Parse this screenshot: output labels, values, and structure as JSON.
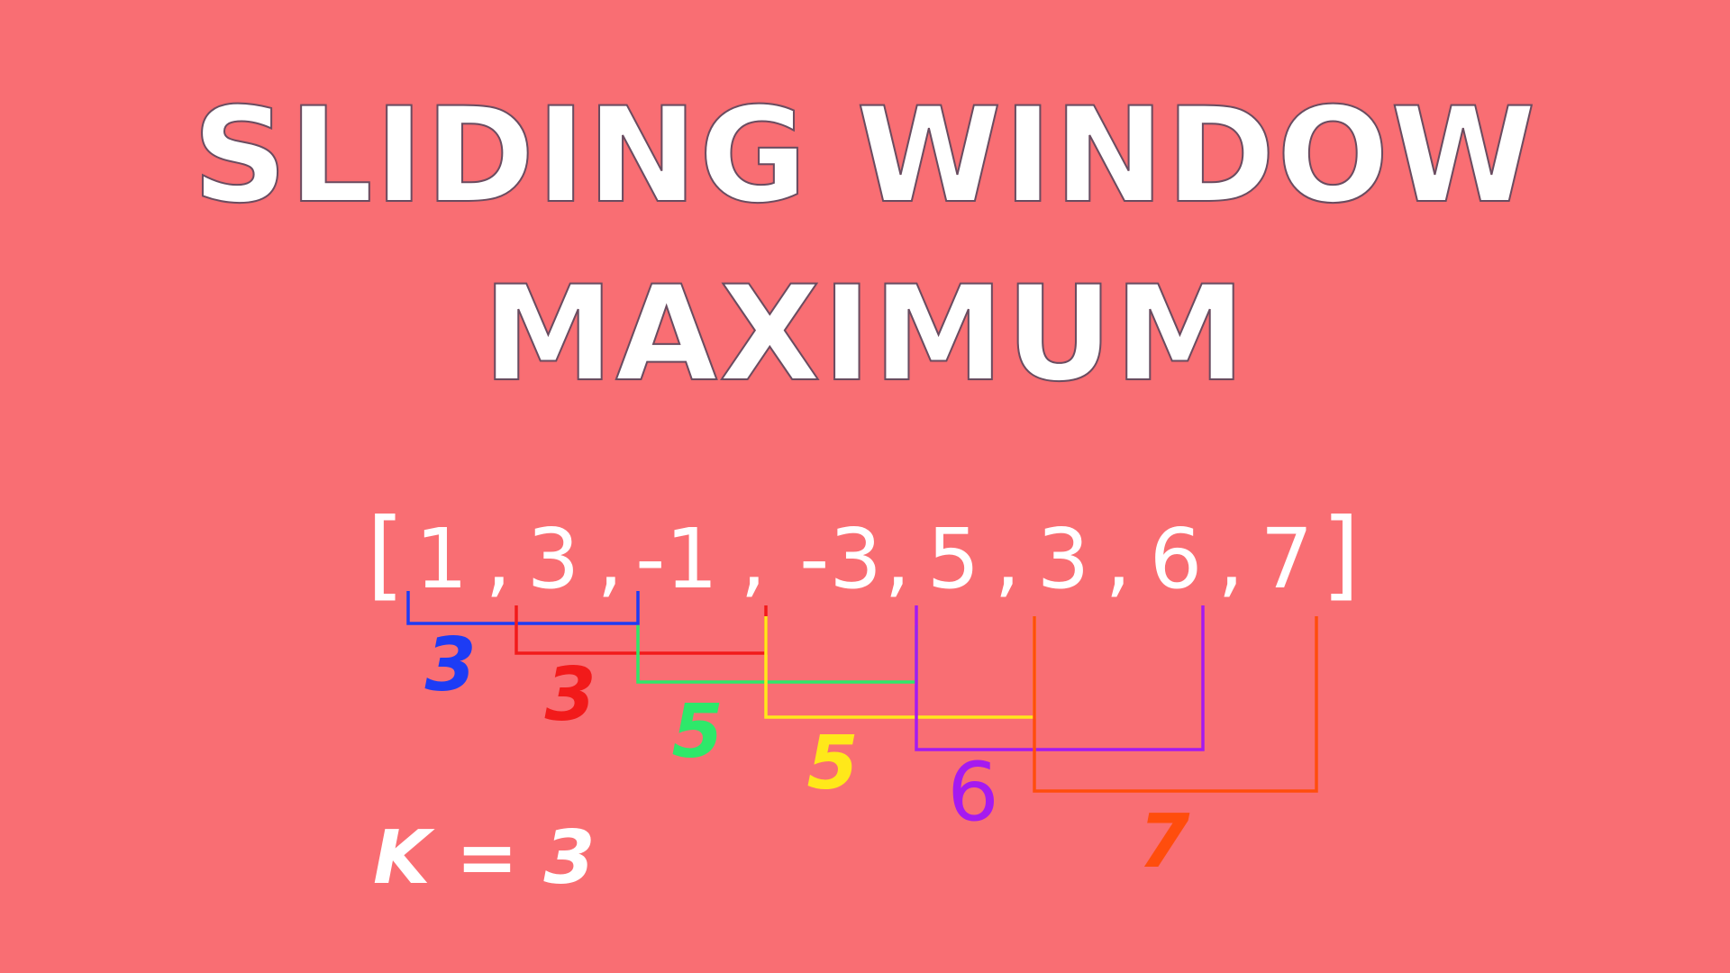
{
  "title": {
    "line1": "SLIDING WINDOW",
    "line2": "MAXIMUM"
  },
  "array": {
    "open_bracket": "[",
    "close_bracket": "]",
    "separator": ",",
    "values": [
      "1",
      "3",
      "-1",
      "-3",
      "5",
      "3",
      "6",
      "7"
    ]
  },
  "k_label": "K = 3",
  "window_size": 3,
  "windows": [
    {
      "start": 0,
      "end": 2,
      "max": "3",
      "color": "#1d3cf5"
    },
    {
      "start": 1,
      "end": 3,
      "max": "3",
      "color": "#f21a1a"
    },
    {
      "start": 2,
      "end": 4,
      "max": "5",
      "color": "#2ee86a"
    },
    {
      "start": 3,
      "end": 5,
      "max": "5",
      "color": "#ffe81a"
    },
    {
      "start": 4,
      "end": 6,
      "max": "6",
      "color": "#a51af0"
    },
    {
      "start": 5,
      "end": 7,
      "max": "7",
      "color": "#ff4d0d"
    }
  ],
  "colors": {
    "background": "#f96e73",
    "text": "#ffffff"
  }
}
